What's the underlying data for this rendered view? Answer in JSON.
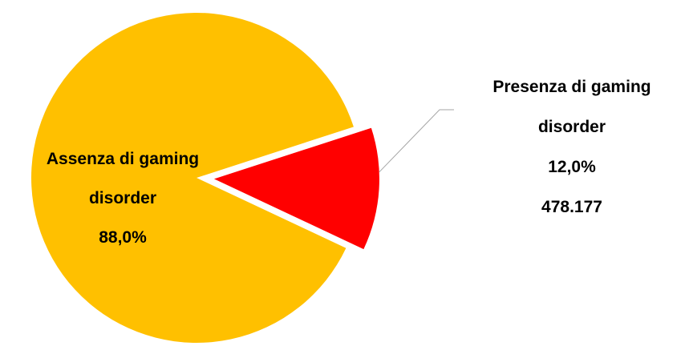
{
  "chart_data": {
    "type": "pie",
    "exploded": true,
    "slices": [
      {
        "label_lines": [
          "Assenza di gaming",
          "disorder"
        ],
        "percent_text": "88,0%",
        "value": 88.0,
        "color": "#FFC000"
      },
      {
        "label_lines": [
          "Presenza di gaming",
          "disorder"
        ],
        "percent_text": "12,0%",
        "count_text": "478.177",
        "value": 12.0,
        "color": "#FF0000"
      }
    ],
    "leader_line_color": "#A6A6A6"
  }
}
